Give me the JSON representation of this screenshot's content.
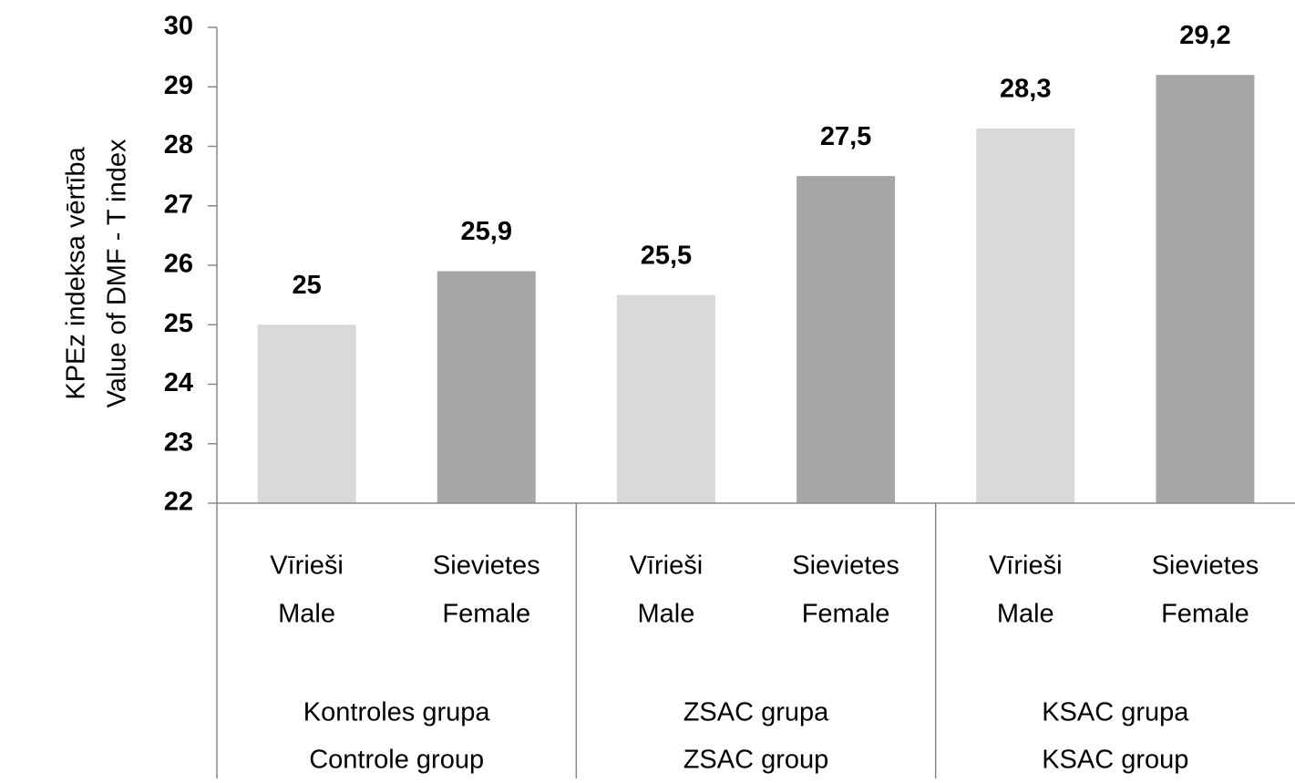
{
  "chart_data": {
    "type": "bar",
    "y_label": [
      "KPEz indeksa vērtība",
      "Value of DMF - T index"
    ],
    "categories": [
      [
        "Vīrieši",
        "Male"
      ],
      [
        "Sievietes",
        "Female"
      ],
      [
        "Vīrieši",
        "Male"
      ],
      [
        "Sievietes",
        "Female"
      ],
      [
        "Vīrieši",
        "Male"
      ],
      [
        "Sievietes",
        "Female"
      ]
    ],
    "groups": [
      [
        "Kontroles grupa",
        "Controle group"
      ],
      [
        "ZSAC grupa",
        "ZSAC group"
      ],
      [
        "KSAC grupa",
        "KSAC group"
      ]
    ],
    "values": [
      25,
      25.9,
      25.5,
      27.5,
      28.3,
      29.2
    ],
    "value_labels": [
      "25",
      "25,9",
      "25,5",
      "27,5",
      "28,3",
      "29,2"
    ],
    "colors": [
      "#d9d9d9",
      "#a6a6a6",
      "#d9d9d9",
      "#a6a6a6",
      "#d9d9d9",
      "#a6a6a6"
    ],
    "ylim": [
      22,
      30
    ],
    "yticks": [
      22,
      23,
      24,
      25,
      26,
      27,
      28,
      29,
      30
    ]
  }
}
